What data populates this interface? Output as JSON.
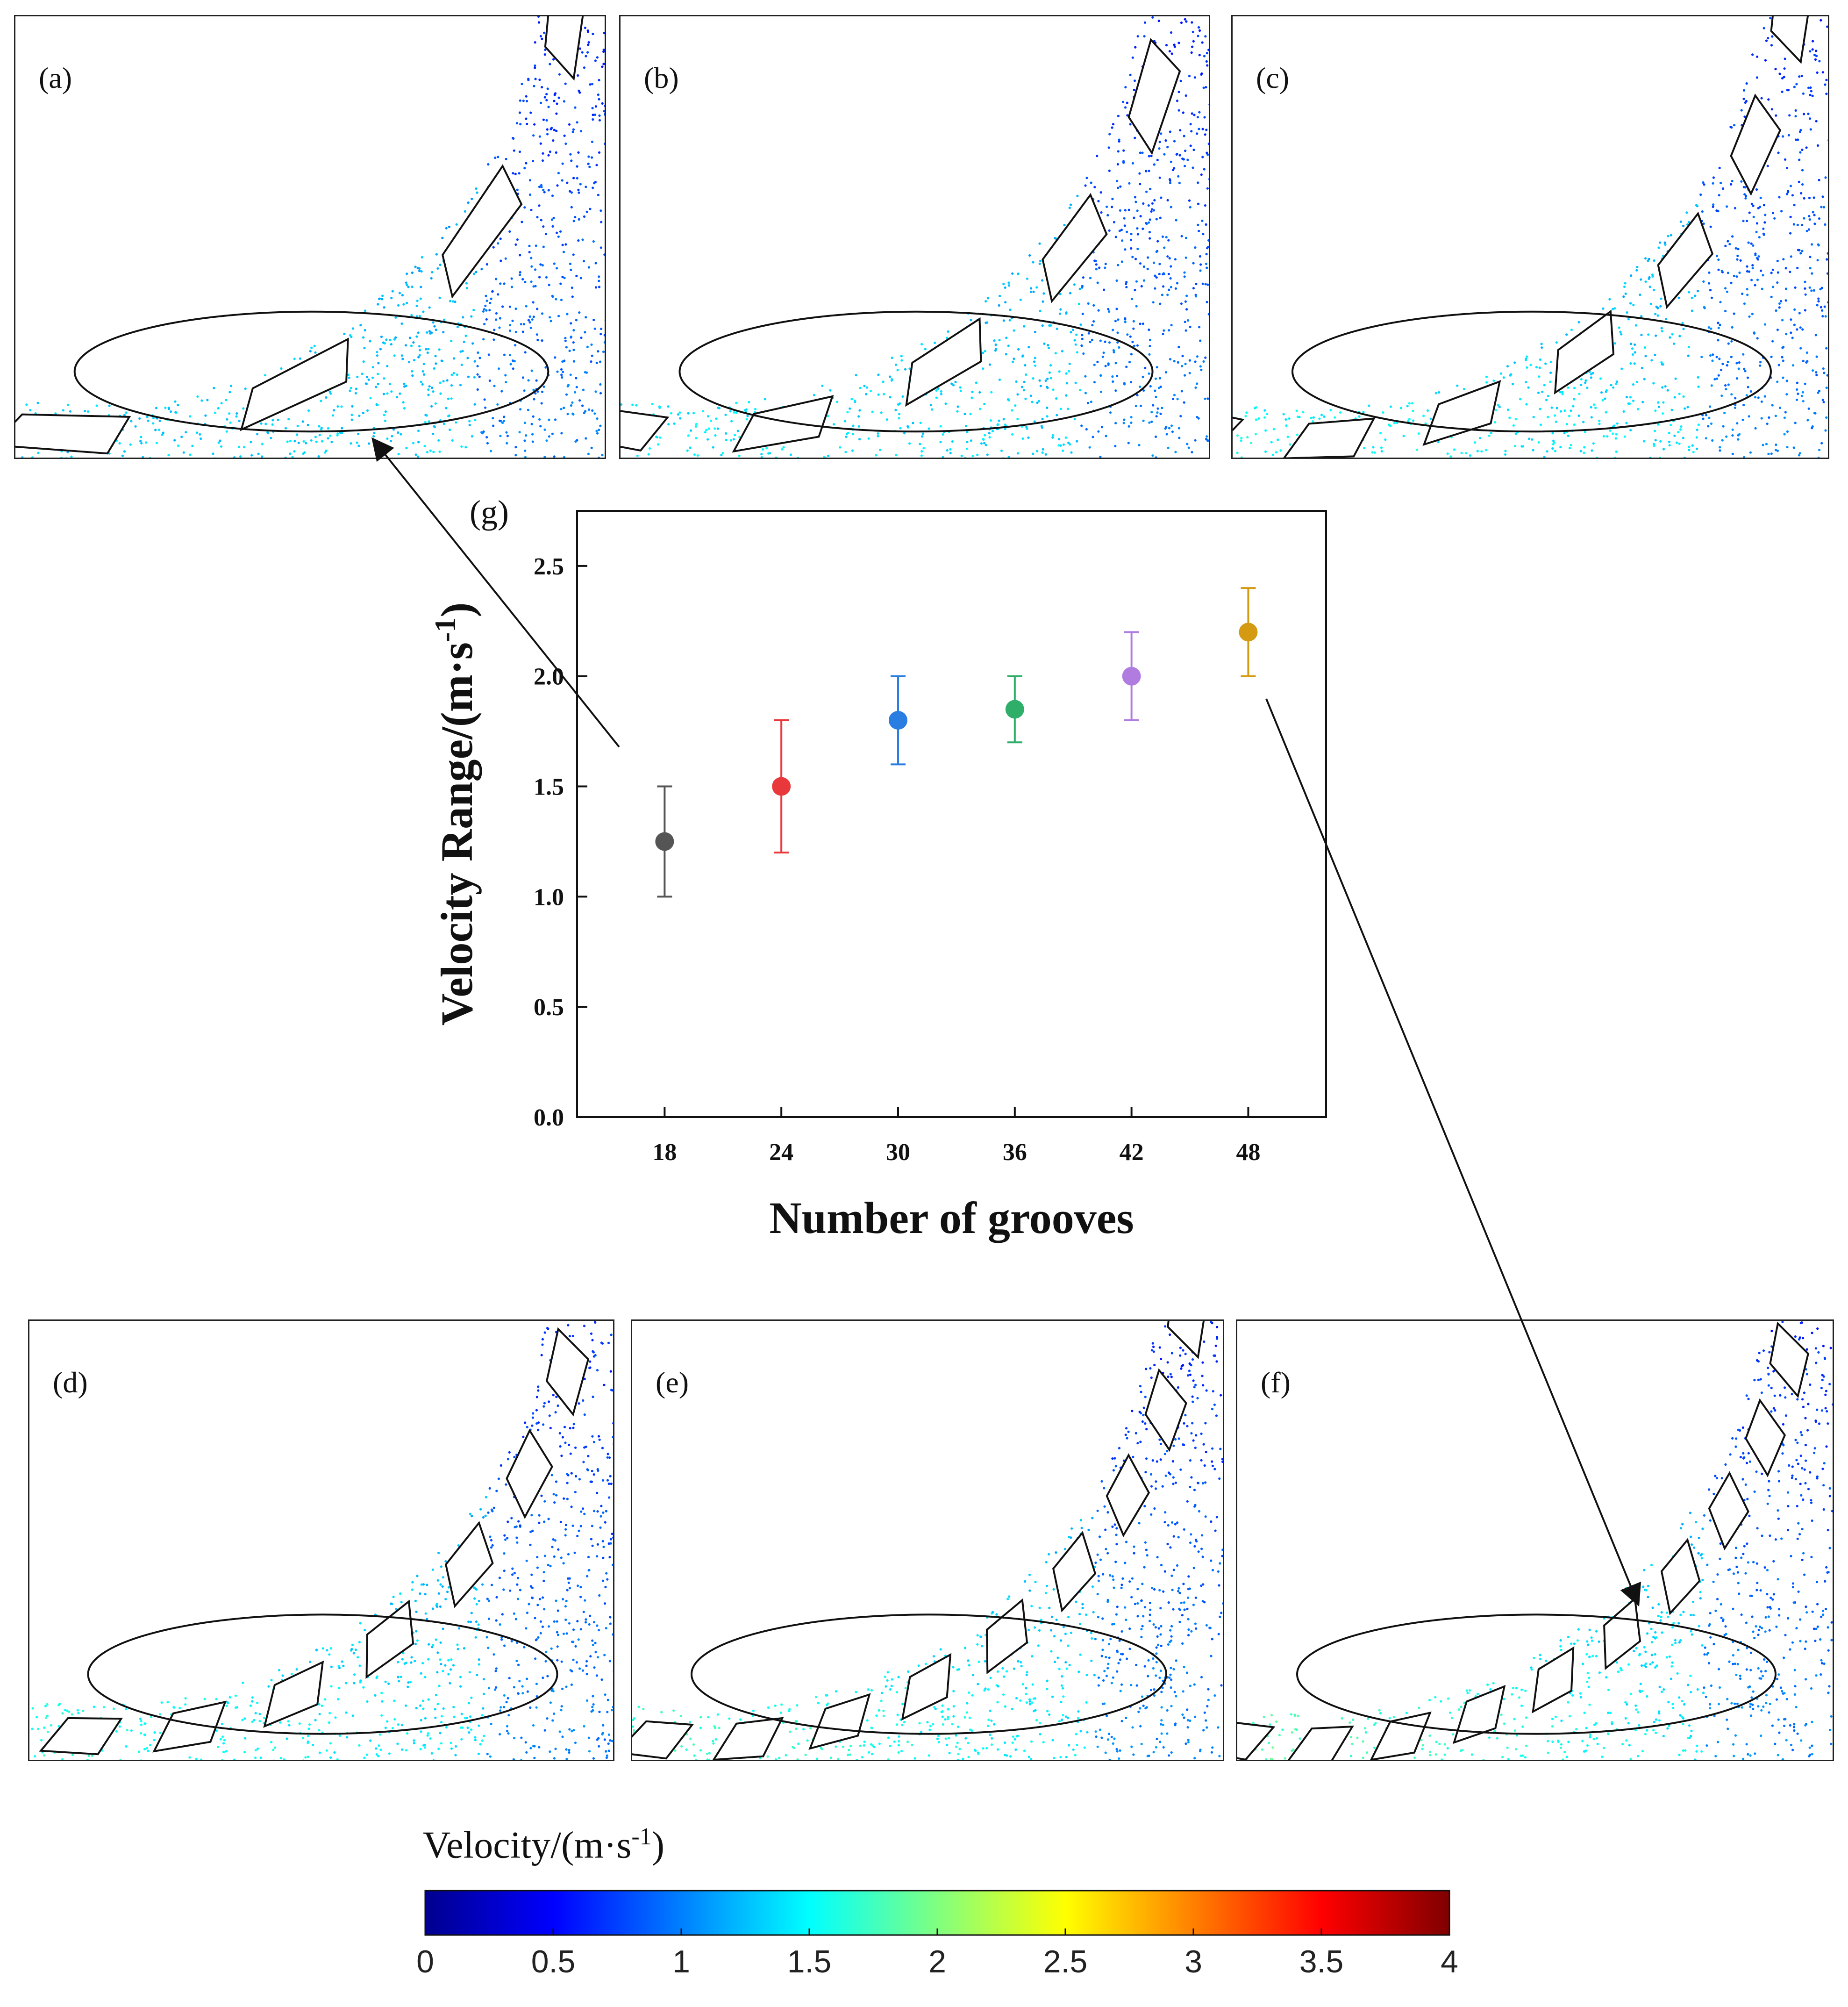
{
  "panels": [
    {
      "label": "(a)",
      "grooves": 18
    },
    {
      "label": "(b)",
      "grooves": 24
    },
    {
      "label": "(c)",
      "grooves": 30
    },
    {
      "label": "(d)",
      "grooves": 36
    },
    {
      "label": "(e)",
      "grooves": 42
    },
    {
      "label": "(f)",
      "grooves": 48
    }
  ],
  "chart_data": {
    "type": "scatter",
    "panel_label": "(g)",
    "title": "",
    "xlabel": "Number of grooves",
    "ylabel": "Velocity Range/(m·s",
    "ylabel_sup": "-1",
    "ylabel_close": ")",
    "x": [
      18,
      24,
      30,
      36,
      42,
      48
    ],
    "xtick_labels": [
      "18",
      "24",
      "30",
      "36",
      "42",
      "48"
    ],
    "xlim": [
      13.5,
      52
    ],
    "ylim": [
      0,
      2.75
    ],
    "yticks": [
      0.0,
      0.5,
      1.0,
      1.5,
      2.0,
      2.5
    ],
    "ytick_labels": [
      "0.0",
      "0.5",
      "1.0",
      "1.5",
      "2.0",
      "2.5"
    ],
    "grid": false,
    "points": [
      {
        "x": 18,
        "y": 1.25,
        "err_low": 1.0,
        "err_high": 1.5,
        "color": "#555555"
      },
      {
        "x": 24,
        "y": 1.5,
        "err_low": 1.2,
        "err_high": 1.8,
        "color": "#e8383b"
      },
      {
        "x": 30,
        "y": 1.8,
        "err_low": 1.6,
        "err_high": 2.0,
        "color": "#2a7de1"
      },
      {
        "x": 36,
        "y": 1.85,
        "err_low": 1.7,
        "err_high": 2.0,
        "color": "#2fae6a"
      },
      {
        "x": 42,
        "y": 2.0,
        "err_low": 1.8,
        "err_high": 2.2,
        "color": "#b07ce0"
      },
      {
        "x": 48,
        "y": 2.2,
        "err_low": 2.0,
        "err_high": 2.4,
        "color": "#d39a12"
      }
    ]
  },
  "colorbar": {
    "title": "Velocity/(m·s",
    "title_sup": "-1",
    "title_close": ")",
    "min": 0,
    "max": 4,
    "tick_labels": [
      "0",
      "0.5",
      "1",
      "1.5",
      "2",
      "2.5",
      "3",
      "3.5",
      "4"
    ],
    "colors": [
      "#00008f",
      "#0000ff",
      "#0080ff",
      "#00ffff",
      "#80ff80",
      "#ffff00",
      "#ff8000",
      "#ff0000",
      "#800000"
    ]
  }
}
